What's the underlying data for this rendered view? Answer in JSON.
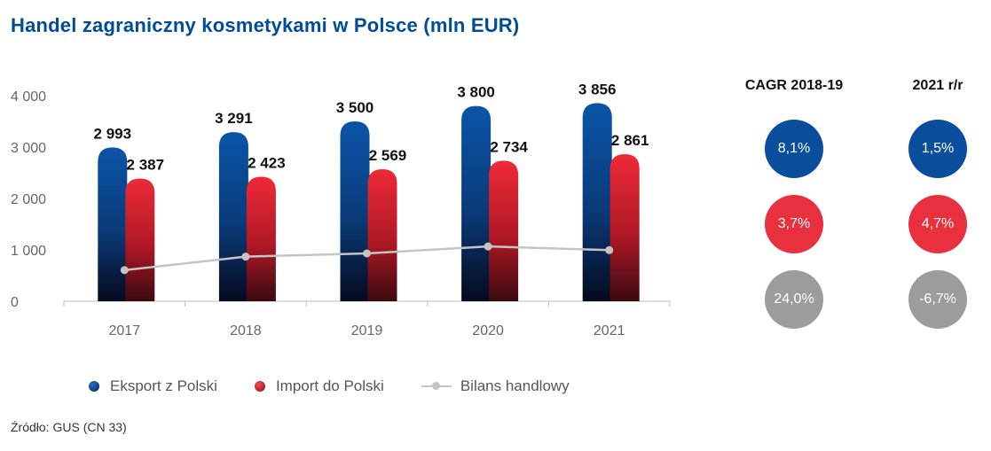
{
  "title": "Handel zagraniczny kosmetykami w Polsce (mln EUR)",
  "source": "Źródło: GUS (CN 33)",
  "legend": {
    "export": "Eksport z Polski",
    "import": "Import do Polski",
    "balance": "Bilans handlowy"
  },
  "colors": {
    "export": "#0a4f9e",
    "import": "#e31e2d",
    "balance": "#c4c4c4",
    "positive_circle": "#0a4f9e",
    "negative_circle": "#e8303f",
    "neutral_circle": "#9c9c9c"
  },
  "stats": {
    "cagr_header": "CAGR 2018-19",
    "yoy_header": "2021 r/r",
    "export": {
      "cagr": "8,1%",
      "yoy": "1,5%"
    },
    "import": {
      "cagr": "3,7%",
      "yoy": "4,7%"
    },
    "balance": {
      "cagr": "24,0%",
      "yoy": "-6,7%"
    }
  },
  "chart_data": {
    "type": "bar",
    "title": "Handel zagraniczny kosmetykami w Polsce (mln EUR)",
    "categories": [
      "2017",
      "2018",
      "2019",
      "2020",
      "2021"
    ],
    "ylim": [
      0,
      4000
    ],
    "yticks": [
      "0",
      "1 000",
      "2 000",
      "3 000",
      "4 000"
    ],
    "ytick_values": [
      0,
      1000,
      2000,
      3000,
      4000
    ],
    "legend_position": "bottom",
    "grid": false,
    "series": [
      {
        "name": "Eksport z Polski",
        "type": "bar",
        "values": [
          2993,
          3291,
          3500,
          3800,
          3856
        ],
        "labels": [
          "2 993",
          "3 291",
          "3 500",
          "3 800",
          "3 856"
        ]
      },
      {
        "name": "Import do Polski",
        "type": "bar",
        "values": [
          2387,
          2423,
          2569,
          2734,
          2861
        ],
        "labels": [
          "2 387",
          "2 423",
          "2 569",
          "2 734",
          "2 861"
        ]
      },
      {
        "name": "Bilans handlowy",
        "type": "line",
        "values": [
          606,
          868,
          931,
          1066,
          995
        ]
      }
    ]
  }
}
